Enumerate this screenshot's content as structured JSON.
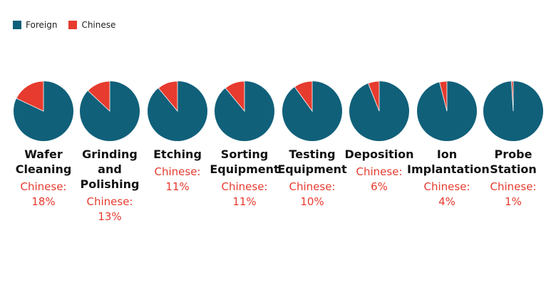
{
  "colors": {
    "foreign": "#10607a",
    "chinese": "#e63b2e"
  },
  "legend": [
    {
      "label": "Foreign",
      "color": "#10607a"
    },
    {
      "label": "Chinese",
      "color": "#e63b2e"
    }
  ],
  "chart_data": {
    "type": "pie",
    "title": "",
    "series_names": [
      "Foreign",
      "Chinese"
    ],
    "categories": [
      {
        "label": "Wafer Cleaning",
        "label_lines": [
          "Wafer",
          "Cleaning"
        ],
        "chinese": 18,
        "foreign": 82,
        "share_text": "Chinese:\n18%"
      },
      {
        "label": "Grinding and Polishing",
        "label_lines": [
          "Grinding",
          "and",
          "Polishing"
        ],
        "chinese": 13,
        "foreign": 87,
        "share_text": "Chinese:\n13%"
      },
      {
        "label": "Etching",
        "label_lines": [
          "Etching"
        ],
        "chinese": 11,
        "foreign": 89,
        "share_text": "Chinese:\n11%"
      },
      {
        "label": "Sorting Equipment",
        "label_lines": [
          "Sorting",
          "Equipment"
        ],
        "chinese": 11,
        "foreign": 89,
        "share_text": "Chinese:\n11%"
      },
      {
        "label": "Testing Equipment",
        "label_lines": [
          "Testing",
          "Equipment"
        ],
        "chinese": 10,
        "foreign": 90,
        "share_text": "Chinese:\n10%"
      },
      {
        "label": "Deposition",
        "label_lines": [
          "Deposition"
        ],
        "chinese": 6,
        "foreign": 94,
        "share_text": "Chinese:\n6%"
      },
      {
        "label": "Ion Implantation",
        "label_lines": [
          "Ion",
          "Implantation"
        ],
        "chinese": 4,
        "foreign": 96,
        "share_text": "Chinese:\n4%"
      },
      {
        "label": "Probe Station",
        "label_lines": [
          "Probe",
          "Station"
        ],
        "chinese": 1,
        "foreign": 99,
        "share_text": "Chinese:\n1%"
      }
    ]
  }
}
